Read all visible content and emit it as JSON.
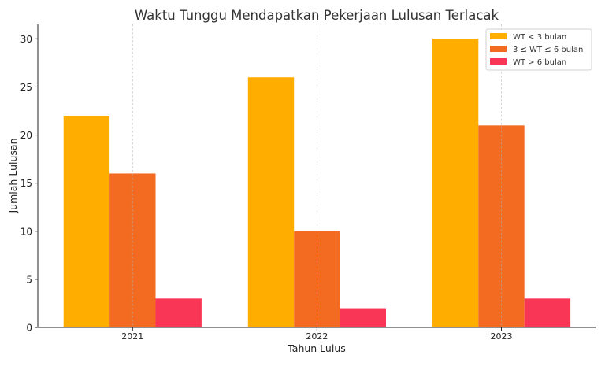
{
  "chart_data": {
    "type": "bar",
    "title": "Waktu Tunggu Mendapatkan Pekerjaan Lulusan Terlacak",
    "xlabel": "Tahun Lulus",
    "ylabel": "Jumlah Lulusan",
    "categories": [
      "2021",
      "2022",
      "2023"
    ],
    "series": [
      {
        "name": "WT < 3 bulan",
        "values": [
          22,
          26,
          30
        ],
        "color": "#FFAE00"
      },
      {
        "name": "3 ≤ WT ≤ 6 bulan",
        "values": [
          16,
          10,
          21
        ],
        "color": "#F26B21"
      },
      {
        "name": "WT > 6 bulan",
        "values": [
          3,
          2,
          3
        ],
        "color": "#F93656"
      }
    ],
    "ylim": [
      0,
      31.5
    ],
    "yticks": [
      0,
      5,
      10,
      15,
      20,
      25,
      30
    ],
    "grid": "vertical-x",
    "legend_position": "top-right"
  }
}
